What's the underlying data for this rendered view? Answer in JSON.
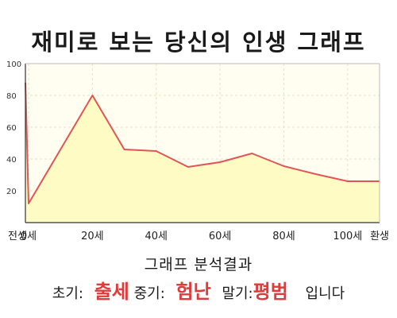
{
  "title": "재미로 보는 당신의 인생 그래프",
  "analysis": {
    "heading": "그래프 분석결과",
    "early_label": "초기:",
    "early_value": "출세",
    "middle_label": "중기:",
    "middle_value": "험난",
    "late_label": "말기:",
    "late_value": "평범",
    "suffix": "입니다"
  },
  "colors": {
    "line": "#e05555",
    "fill": "#fefcc4",
    "plot_bg": "#fffef0",
    "result_accent": "#e03a3a"
  },
  "chart_data": {
    "type": "area",
    "title": "",
    "xlabel": "",
    "ylabel": "",
    "ylim": [
      0,
      100
    ],
    "yticks": [
      20,
      40,
      60,
      80,
      100
    ],
    "xticks": [
      "전생",
      "0세",
      "20세",
      "40세",
      "60세",
      "80세",
      "100세",
      "환생"
    ],
    "grid": true,
    "x": [
      -1,
      0,
      20,
      30,
      40,
      50,
      60,
      70,
      80,
      90,
      100,
      110
    ],
    "series": [
      {
        "values": [
          88,
          12,
          80,
          46,
          45,
          35,
          38,
          43.5,
          35.5,
          30.5,
          26,
          26
        ]
      }
    ]
  }
}
